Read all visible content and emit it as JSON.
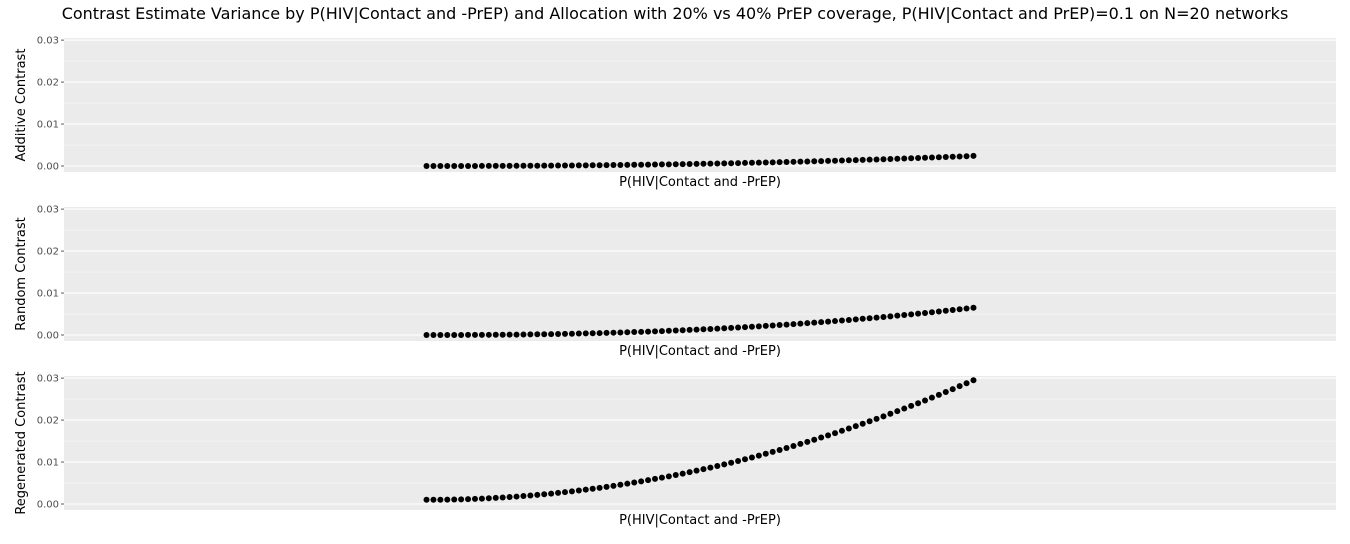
{
  "chart_data": {
    "type": "scatter",
    "title": "Contrast Estimate Variance by P(HIV|Contact and -PrEP) and Allocation with 20% vs 40% PrEP coverage, P(HIV|Contact and PrEP)=0.1 on N=20 networks",
    "panel_background": "#ebebeb",
    "point_color": "#000000",
    "grid": true,
    "legend": "none",
    "ylim": [
      0,
      0.0305
    ],
    "yticks": [
      {
        "value": 0.0,
        "label": "0.00"
      },
      {
        "value": 0.01,
        "label": "0.01"
      },
      {
        "value": 0.02,
        "label": "0.02"
      },
      {
        "value": 0.03,
        "label": "0.03"
      }
    ],
    "x_range_fraction_of_panel": [
      0.285,
      0.715
    ],
    "panels": [
      {
        "ylabel": "Additive Contrast",
        "xlabel": "P(HIV|Contact and -PrEP)",
        "y_start": 0.0,
        "y_end": 0.0024,
        "power": 2.2
      },
      {
        "ylabel": "Random Contrast",
        "xlabel": "P(HIV|Contact and -PrEP)",
        "y_start": 0.0,
        "y_end": 0.0065,
        "power": 2.3
      },
      {
        "ylabel": "Regenerated Contrast",
        "xlabel": "P(HIV|Contact and -PrEP)",
        "y_start": 0.001,
        "y_end": 0.0295,
        "power": 2.0
      }
    ],
    "n_points": 80
  }
}
